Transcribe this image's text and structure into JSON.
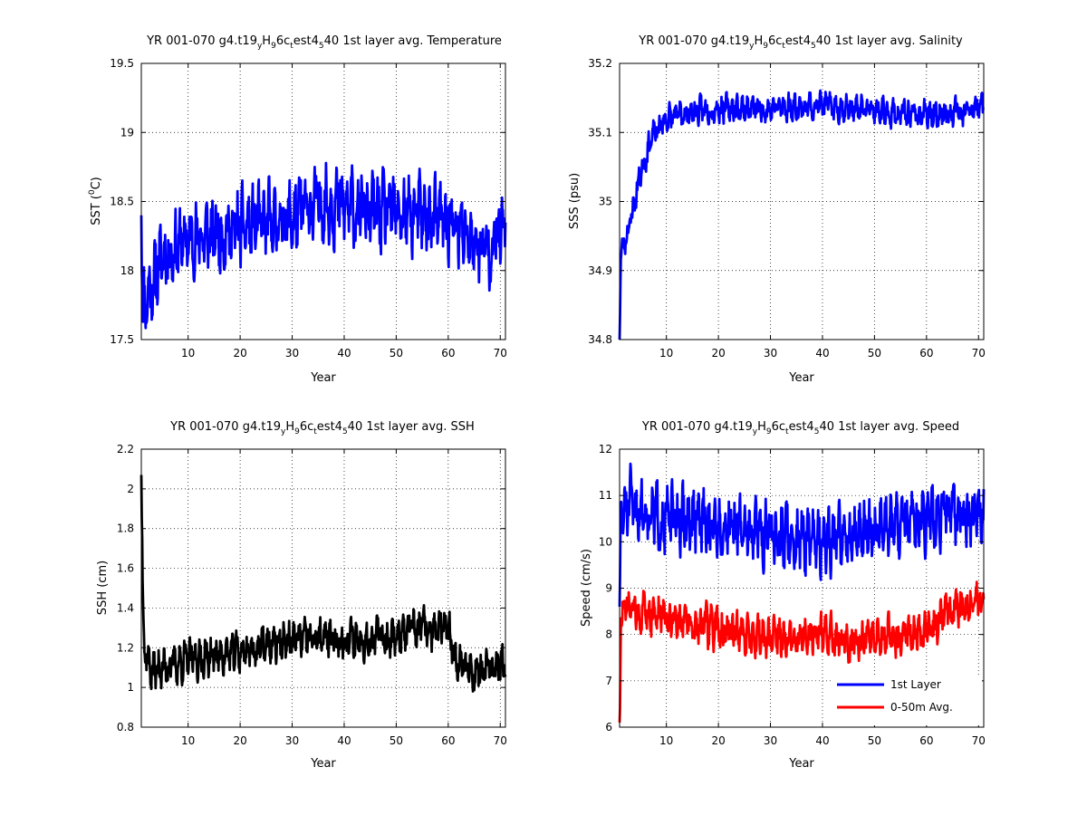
{
  "figure": {
    "background": "#ffffff",
    "grid": "dotted"
  },
  "chart_data": [
    {
      "type": "line",
      "title_main": "YR 001-070 g4.t19",
      "title_tail": "1st layer avg. Temperature",
      "ylabel_pre": "SST (",
      "ylabel_sup": "0",
      "ylabel_post": "C)",
      "xlabel": "Year",
      "xlim": [
        1,
        71
      ],
      "ylim": [
        17.5,
        19.5
      ],
      "xticks": [
        10,
        20,
        30,
        40,
        50,
        60,
        70
      ],
      "yticks": [
        17.5,
        18,
        18.5,
        19,
        19.5
      ],
      "ytick_labels": [
        "17.5",
        "18",
        "18.5",
        "19",
        "19.5"
      ],
      "grid": true,
      "series": [
        {
          "color": "#0000ff",
          "seed": 11,
          "anchors": [
            [
              1,
              18.4
            ],
            [
              1.3,
              17.75
            ],
            [
              3,
              17.9
            ],
            [
              5,
              18.1
            ],
            [
              10,
              18.22
            ],
            [
              20,
              18.3
            ],
            [
              30,
              18.38
            ],
            [
              36,
              18.5
            ],
            [
              45,
              18.42
            ],
            [
              55,
              18.4
            ],
            [
              60,
              18.35
            ],
            [
              67,
              18.15
            ],
            [
              71,
              18.3
            ]
          ],
          "amp": 0.28
        }
      ]
    },
    {
      "type": "line",
      "title_main": "YR 001-070 g4.t19",
      "title_tail": "1st layer avg. Salinity",
      "ylabel": "SSS (psu)",
      "xlabel": "Year",
      "xlim": [
        1,
        71
      ],
      "ylim": [
        34.8,
        35.2
      ],
      "xticks": [
        10,
        20,
        30,
        40,
        50,
        60,
        70
      ],
      "yticks": [
        34.8,
        34.9,
        35,
        35.1,
        35.2
      ],
      "ytick_labels": [
        "34.8",
        "34.9",
        "35",
        "35.1",
        "35.2"
      ],
      "grid": true,
      "series": [
        {
          "color": "#0000ff",
          "seed": 23,
          "anchors": [
            [
              1,
              34.8
            ],
            [
              1.2,
              34.92
            ],
            [
              3,
              34.97
            ],
            [
              5,
              35.04
            ],
            [
              7,
              35.09
            ],
            [
              10,
              35.12
            ],
            [
              15,
              35.13
            ],
            [
              20,
              35.135
            ],
            [
              30,
              35.135
            ],
            [
              40,
              35.14
            ],
            [
              50,
              35.13
            ],
            [
              60,
              35.125
            ],
            [
              71,
              35.135
            ]
          ],
          "amp": 0.02
        }
      ]
    },
    {
      "type": "line",
      "title_main": "YR 001-070 g4.t19",
      "title_tail": "1st layer avg. SSH",
      "ylabel": "SSH (cm)",
      "xlabel": "Year",
      "xlim": [
        1,
        71
      ],
      "ylim": [
        0.8,
        2.2
      ],
      "xticks": [
        10,
        20,
        30,
        40,
        50,
        60,
        70
      ],
      "yticks": [
        0.8,
        1,
        1.2,
        1.4,
        1.6,
        1.8,
        2,
        2.2
      ],
      "ytick_labels": [
        "0.8",
        "1",
        "1.2",
        "1.4",
        "1.6",
        "1.8",
        "2",
        "2.2"
      ],
      "grid": true,
      "series": [
        {
          "color": "#000000",
          "seed": 37,
          "anchors": [
            [
              1,
              2.07
            ],
            [
              1.25,
              1.55
            ],
            [
              1.6,
              1.2
            ],
            [
              3,
              1.08
            ],
            [
              10,
              1.14
            ],
            [
              20,
              1.18
            ],
            [
              30,
              1.24
            ],
            [
              40,
              1.24
            ],
            [
              50,
              1.26
            ],
            [
              55,
              1.3
            ],
            [
              60,
              1.28
            ],
            [
              61.5,
              1.15
            ],
            [
              65,
              1.08
            ],
            [
              71,
              1.1
            ]
          ],
          "amp": 0.1
        }
      ]
    },
    {
      "type": "line",
      "title_main": "YR 001-070 g4.t19",
      "title_tail": "1st layer avg. Speed",
      "ylabel": "Speed (cm/s)",
      "xlabel": "Year",
      "xlim": [
        1,
        71
      ],
      "ylim": [
        6,
        12
      ],
      "xticks": [
        10,
        20,
        30,
        40,
        50,
        60,
        70
      ],
      "yticks": [
        6,
        7,
        8,
        9,
        10,
        11,
        12
      ],
      "ytick_labels": [
        "6",
        "7",
        "8",
        "9",
        "10",
        "11",
        "12"
      ],
      "grid": true,
      "legend_position": "bottom-right",
      "series": [
        {
          "name": "1st Layer",
          "color": "#0000ff",
          "seed": 51,
          "anchors": [
            [
              1,
              8.6
            ],
            [
              1.3,
              10.6
            ],
            [
              3,
              10.8
            ],
            [
              10,
              10.5
            ],
            [
              20,
              10.4
            ],
            [
              30,
              10.2
            ],
            [
              40,
              10.0
            ],
            [
              50,
              10.3
            ],
            [
              60,
              10.4
            ],
            [
              65,
              10.6
            ],
            [
              71,
              10.6
            ]
          ],
          "amp": 0.7
        },
        {
          "name": "0-50m Avg.",
          "color": "#ff0000",
          "seed": 73,
          "anchors": [
            [
              1,
              6.1
            ],
            [
              1.3,
              8.4
            ],
            [
              3,
              8.55
            ],
            [
              10,
              8.4
            ],
            [
              20,
              8.1
            ],
            [
              30,
              7.9
            ],
            [
              40,
              8.0
            ],
            [
              45,
              7.8
            ],
            [
              50,
              7.95
            ],
            [
              60,
              8.1
            ],
            [
              63,
              8.4
            ],
            [
              66,
              8.6
            ],
            [
              71,
              8.7
            ]
          ],
          "amp": 0.45
        }
      ]
    }
  ]
}
